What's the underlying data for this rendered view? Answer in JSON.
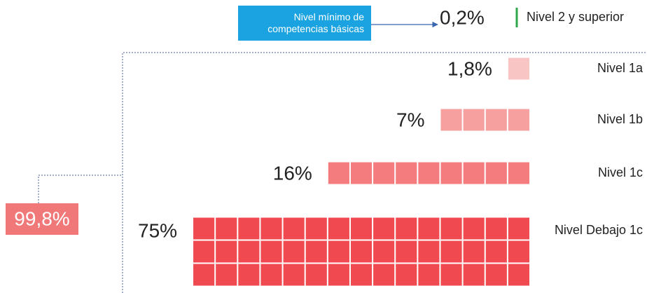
{
  "chart_data": {
    "type": "waffle",
    "annotation": "Nivel mínimo de competencias básicas",
    "categories": [
      "Nivel 2 y superior",
      "Nivel 1a",
      "Nivel 1b",
      "Nivel 1c",
      "Nivel Debajo 1c"
    ],
    "values": [
      0.2,
      1.8,
      7,
      16,
      75
    ],
    "value_labels": [
      "0,2%",
      "1,8%",
      "7%",
      "16%",
      "75%"
    ],
    "colors": [
      "#2ea84a",
      "#f9c4c4",
      "#f7a0a0",
      "#f47c7e",
      "#f04a50"
    ],
    "total": {
      "value": 99.8,
      "label": "99,8%",
      "color": "#f07878"
    }
  }
}
